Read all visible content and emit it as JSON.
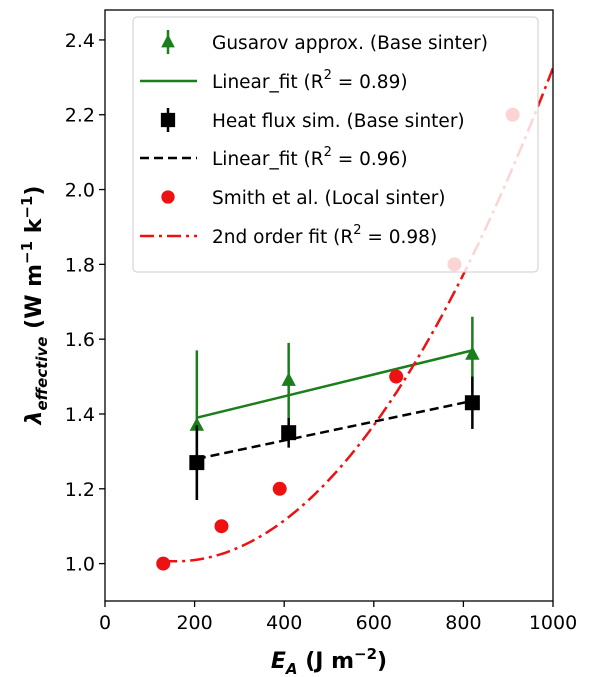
{
  "chart_data": {
    "type": "scatter",
    "xlim": [
      0,
      1000
    ],
    "ylim": [
      0.9,
      2.48
    ],
    "x_ticks": [
      0,
      200,
      400,
      600,
      800,
      1000
    ],
    "y_ticks": [
      1.0,
      1.2,
      1.4,
      1.6,
      1.8,
      2.0,
      2.2,
      2.4
    ],
    "x_tick_labels": [
      "0",
      "200",
      "400",
      "600",
      "800",
      "1000"
    ],
    "y_tick_labels": [
      "1.0",
      "1.2",
      "1.4",
      "1.6",
      "1.8",
      "2.0",
      "2.2",
      "2.4"
    ],
    "xlabel": {
      "main": "E",
      "sub": "A",
      "unit": " (J m",
      "sup": "−2",
      "close": ")"
    },
    "ylabel": {
      "main": "λ",
      "sub": "effective",
      "unit": " (W m",
      "sup1": "−1",
      "mid": " k",
      "sup2": "−1",
      "close": ")"
    },
    "grid": false,
    "legend_placement": "top",
    "series": [
      {
        "name": "Gusarov approx. (Base sinter)",
        "marker": "triangle",
        "color": "#1a7f1a",
        "x": [
          205,
          410,
          820
        ],
        "y": [
          1.37,
          1.49,
          1.56
        ],
        "yerr": [
          0.2,
          0.1,
          0.1
        ]
      },
      {
        "name": "Linear_fit (R² = 0.89)",
        "kind": "line",
        "style": "solid",
        "color": "#1a7f1a",
        "x": [
          205,
          820
        ],
        "y": [
          1.39,
          1.57
        ]
      },
      {
        "name": "Heat flux sim. (Base sinter)",
        "marker": "square",
        "color": "#000000",
        "x": [
          205,
          410,
          820
        ],
        "y": [
          1.27,
          1.35,
          1.43
        ],
        "yerr": [
          0.1,
          0.04,
          0.07
        ]
      },
      {
        "name": "Linear_fit (R² = 0.96)",
        "kind": "line",
        "style": "dashed",
        "color": "#000000",
        "x": [
          205,
          820
        ],
        "y": [
          1.28,
          1.435
        ]
      },
      {
        "name": "Smith et al. (Local sinter)",
        "marker": "circle",
        "color": "#ee1111",
        "x": [
          130,
          260,
          390,
          650,
          780,
          910
        ],
        "y": [
          1.0,
          1.1,
          1.2,
          1.5,
          1.8,
          2.2
        ]
      },
      {
        "name": "2nd order fit (R² = 0.98)",
        "kind": "curve",
        "style": "dashdot",
        "color": "#ee1111",
        "x_range": [
          130,
          1000
        ],
        "coefficients": [
          1.0525,
          -0.000587,
          1.86e-06
        ]
      }
    ]
  },
  "legend": [
    {
      "label": "Gusarov approx. (Base sinter)"
    },
    {
      "prefix": "Linear_fit (R",
      "sup": "2",
      "suffix": " = 0.89)"
    },
    {
      "label": "Heat flux sim. (Base sinter)"
    },
    {
      "prefix": "Linear_fit (R",
      "sup": "2",
      "suffix": " = 0.96)"
    },
    {
      "label": "Smith et al. (Local sinter)"
    },
    {
      "prefix": "2nd order fit (R",
      "sup": "2",
      "suffix": " = 0.98)"
    }
  ]
}
